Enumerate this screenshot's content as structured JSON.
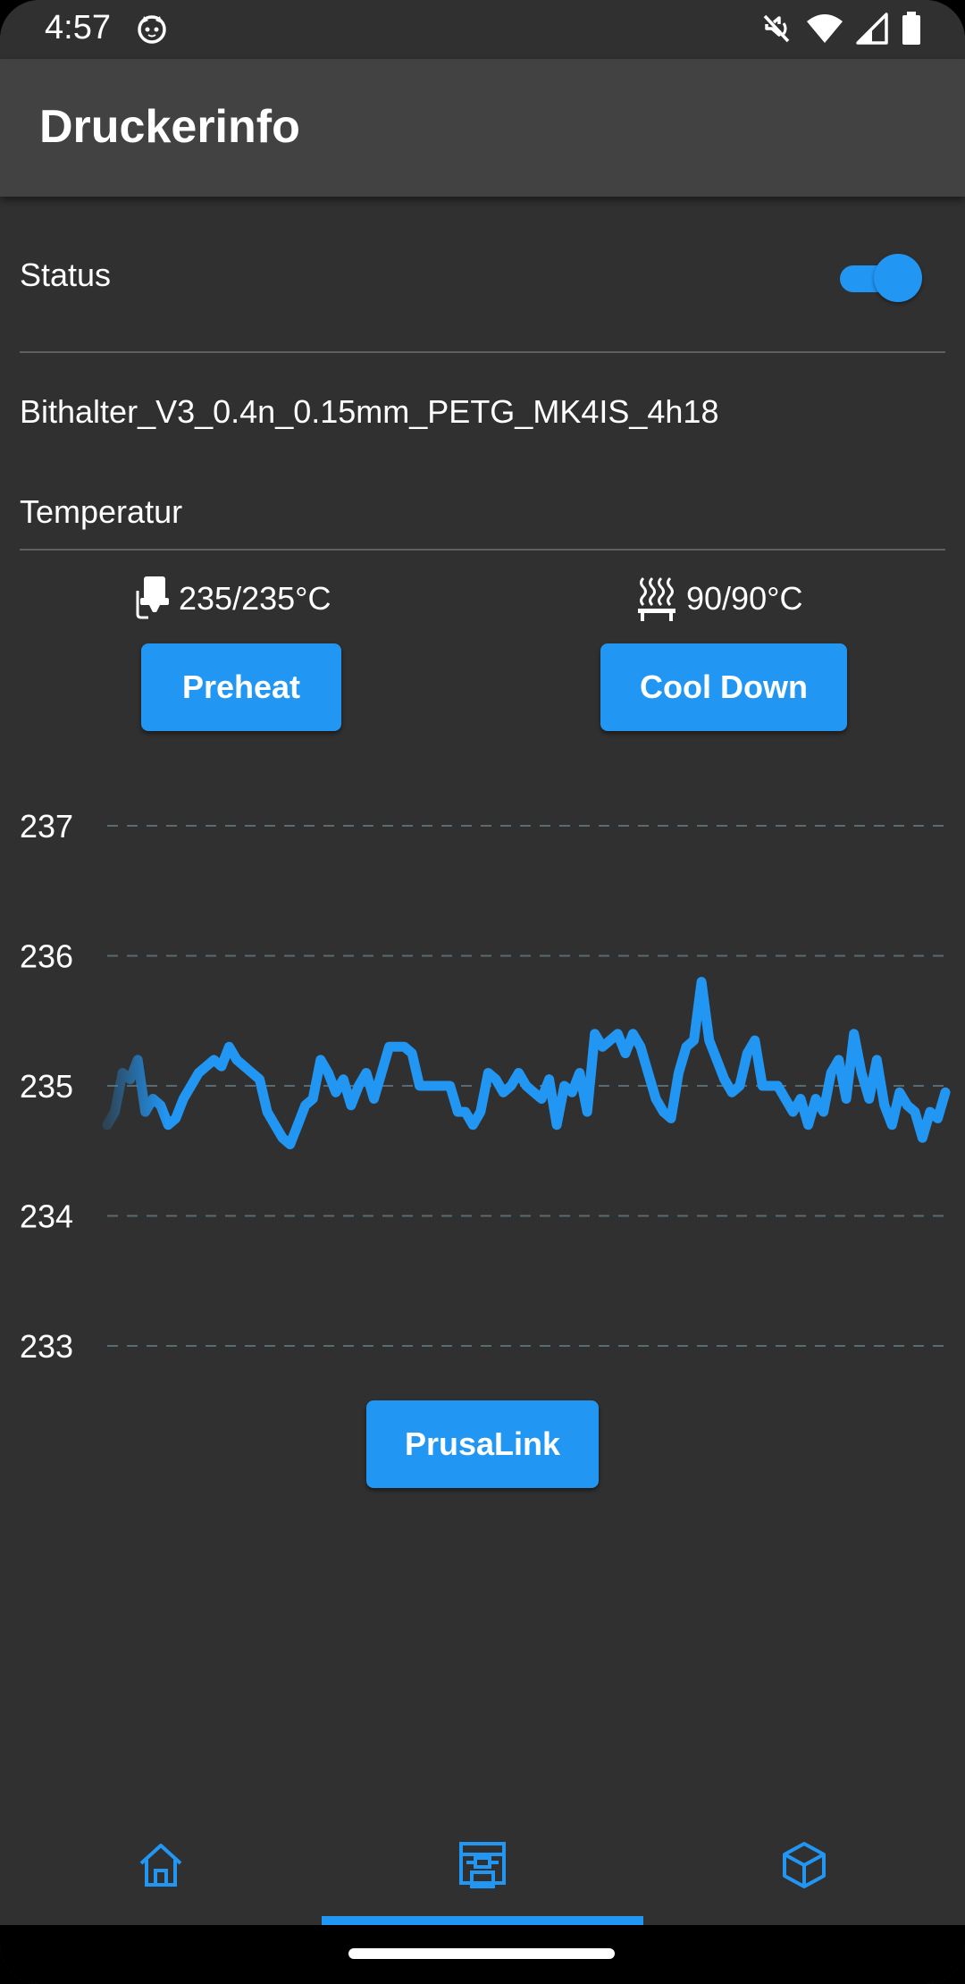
{
  "status_bar": {
    "time": "4:57"
  },
  "app_bar": {
    "title": "Druckerinfo"
  },
  "status": {
    "label": "Status",
    "enabled": true
  },
  "print_file": {
    "name": "Bithalter_V3_0.4n_0.15mm_PETG_MK4IS_4h18"
  },
  "temperature": {
    "heading": "Temperatur",
    "nozzle": "235/235°C",
    "bed": "90/90°C",
    "nozzle_icon": "nozzle-icon",
    "bed_icon": "heatbed-icon"
  },
  "buttons": {
    "preheat": "Preheat",
    "cooldown": "Cool Down",
    "prusalink": "PrusaLink"
  },
  "nav": {
    "items": [
      {
        "icon": "home-icon",
        "active": false
      },
      {
        "icon": "printer-icon",
        "active": true
      },
      {
        "icon": "cube-icon",
        "active": false
      }
    ]
  },
  "colors": {
    "accent": "#2196f3",
    "background": "#303030",
    "appbar": "#424242"
  },
  "chart_data": {
    "type": "line",
    "ylim": [
      233,
      237
    ],
    "yticks": [
      "237",
      "236",
      "235",
      "234",
      "233"
    ],
    "grid": true,
    "series": [
      {
        "values": [
          234.7,
          234.8,
          235.1,
          235.05,
          235.2,
          234.8,
          234.9,
          234.85,
          234.7,
          234.75,
          234.9,
          235.0,
          235.1,
          235.15,
          235.2,
          235.15,
          235.3,
          235.2,
          235.15,
          235.1,
          235.05,
          234.8,
          234.7,
          234.6,
          234.55,
          234.7,
          234.85,
          234.9,
          235.2,
          235.1,
          234.95,
          235.05,
          234.85,
          235.0,
          235.1,
          234.9,
          235.1,
          235.3,
          235.3,
          235.3,
          235.25,
          235.0,
          235.0,
          235.0,
          235.0,
          235.0,
          234.8,
          234.8,
          234.7,
          234.8,
          235.1,
          235.05,
          234.95,
          235.0,
          235.1,
          235.0,
          234.95,
          234.9,
          235.05,
          234.7,
          235.0,
          234.95,
          235.1,
          234.8,
          235.4,
          235.3,
          235.35,
          235.4,
          235.25,
          235.4,
          235.3,
          235.1,
          234.9,
          234.8,
          234.75,
          235.1,
          235.3,
          235.35,
          235.8,
          235.35,
          235.2,
          235.05,
          234.95,
          235.0,
          235.25,
          235.35,
          235.0,
          235.0,
          235.0,
          234.9,
          234.8,
          234.9,
          234.7,
          234.9,
          234.8,
          235.1,
          235.2,
          234.9,
          235.4,
          235.1,
          234.9,
          235.2,
          234.85,
          234.7,
          234.95,
          234.85,
          234.8,
          234.6,
          234.8,
          234.75,
          234.95
        ]
      }
    ]
  }
}
